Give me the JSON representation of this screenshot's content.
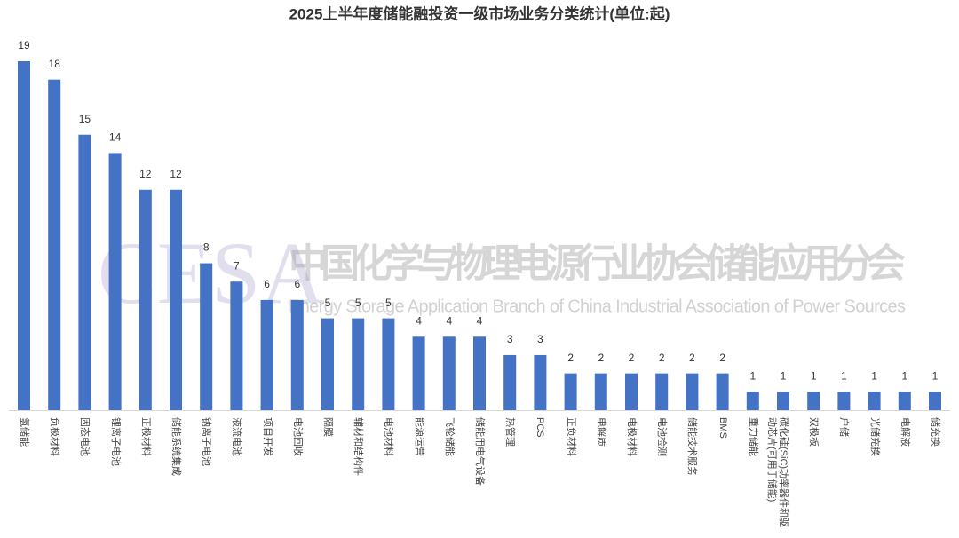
{
  "chart_data": {
    "type": "bar",
    "title": "2025上半年度储能融投资一级市场业务分类统计(单位:起)",
    "watermark": {
      "logo": "CESA",
      "name": "中国化学与物理电源行业协会储能应用分会",
      "english": "Energy Storage Application Branch of China Industrial Association of Power Sources"
    },
    "categories": [
      "氢储能",
      "负极材料",
      "固态电池",
      "锂离子电池",
      "正极材料",
      "储能系统集成",
      "钠离子电池",
      "液流电池",
      "项目开发",
      "电池回收",
      "隔膜",
      "辅材和结构件",
      "电池材料",
      "能源运营",
      "飞轮储能",
      "储能用电气设备",
      "热管理",
      "PCS",
      "正负材料",
      "电解质",
      "电极材料",
      "电池检测",
      "储能技术服务",
      "BMS",
      "重力储能",
      "碳化硅(SiC)功率器件和驱动芯片(可用于储能)",
      "双极板",
      "户储",
      "光储充换",
      "电解液",
      "储充换"
    ],
    "values": [
      19,
      18,
      15,
      14,
      12,
      12,
      8,
      7,
      6,
      6,
      5,
      5,
      5,
      4,
      4,
      4,
      3,
      3,
      2,
      2,
      2,
      2,
      2,
      2,
      1,
      1,
      1,
      1,
      1,
      1,
      1
    ],
    "color": "#4472c4"
  }
}
